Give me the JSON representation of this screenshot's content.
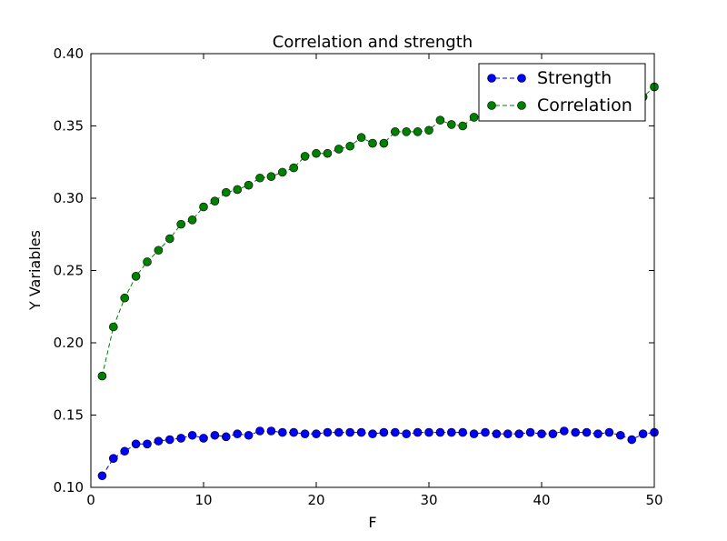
{
  "chart_data": {
    "type": "line",
    "title": "Correlation and strength",
    "xlabel": "F",
    "ylabel": "Y Variables",
    "xlim": [
      0,
      50
    ],
    "ylim": [
      0.1,
      0.4
    ],
    "xticks": [
      0,
      10,
      20,
      30,
      40,
      50
    ],
    "yticks": [
      0.1,
      0.15,
      0.2,
      0.25,
      0.3,
      0.35,
      0.4
    ],
    "xtick_labels": [
      "0",
      "10",
      "20",
      "30",
      "40",
      "50"
    ],
    "ytick_labels": [
      "0.10",
      "0.15",
      "0.20",
      "0.25",
      "0.30",
      "0.35",
      "0.40"
    ],
    "grid": false,
    "legend_position": "top-right",
    "x": [
      1,
      2,
      3,
      4,
      5,
      6,
      7,
      8,
      9,
      10,
      11,
      12,
      13,
      14,
      15,
      16,
      17,
      18,
      19,
      20,
      21,
      22,
      23,
      24,
      25,
      26,
      27,
      28,
      29,
      30,
      31,
      32,
      33,
      34,
      35,
      36,
      37,
      38,
      39,
      40,
      41,
      42,
      43,
      44,
      45,
      46,
      47,
      48,
      49,
      50
    ],
    "series": [
      {
        "name": "Strength",
        "color": "#0000ff",
        "values": [
          0.108,
          0.12,
          0.125,
          0.13,
          0.13,
          0.132,
          0.133,
          0.134,
          0.136,
          0.134,
          0.136,
          0.135,
          0.137,
          0.136,
          0.139,
          0.139,
          0.138,
          0.138,
          0.137,
          0.137,
          0.138,
          0.138,
          0.138,
          0.138,
          0.137,
          0.138,
          0.138,
          0.137,
          0.138,
          0.138,
          0.138,
          0.138,
          0.138,
          0.137,
          0.138,
          0.137,
          0.137,
          0.137,
          0.138,
          0.137,
          0.137,
          0.139,
          0.138,
          0.138,
          0.137,
          0.138,
          0.136,
          0.133,
          0.137,
          0.138
        ]
      },
      {
        "name": "Correlation",
        "color": "#008000",
        "values": [
          0.177,
          0.211,
          0.231,
          0.246,
          0.256,
          0.264,
          0.272,
          0.282,
          0.285,
          0.294,
          0.298,
          0.304,
          0.306,
          0.309,
          0.314,
          0.315,
          0.318,
          0.321,
          0.329,
          0.331,
          0.331,
          0.334,
          0.336,
          0.342,
          0.338,
          0.338,
          0.346,
          0.346,
          0.346,
          0.347,
          0.354,
          0.351,
          0.35,
          0.356,
          0.357,
          0.358,
          0.359,
          0.36,
          0.361,
          0.362,
          0.363,
          0.364,
          0.365,
          0.366,
          0.368,
          0.369,
          0.371,
          0.373,
          0.37,
          0.377
        ]
      }
    ]
  }
}
